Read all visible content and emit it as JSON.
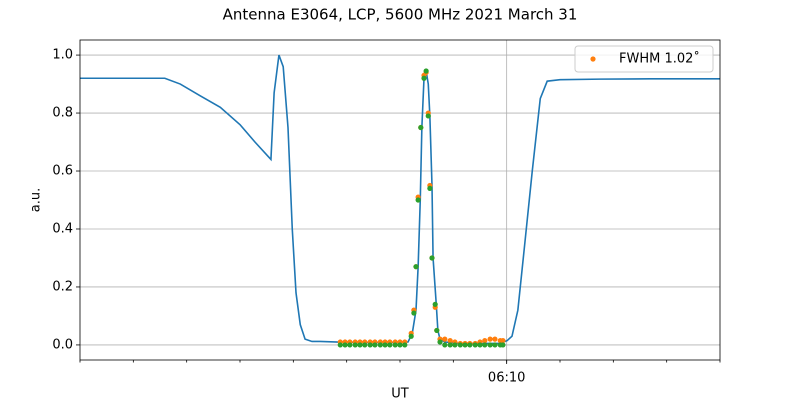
{
  "chart_data": {
    "type": "line",
    "title": "Antenna E3064, LCP, 5600 MHz 2021 March 31",
    "xlabel": "UT",
    "ylabel": "a.u.",
    "xlim": [
      22120,
      22240
    ],
    "ylim": [
      -0.052,
      1.052
    ],
    "xticks": [
      {
        "value": 22200,
        "label": "06:10"
      }
    ],
    "xminorticks": [
      22120,
      22130,
      22140,
      22150,
      22160,
      22170,
      22180,
      22190,
      22200,
      22210,
      22220,
      22230,
      22240
    ],
    "yticks": [
      {
        "value": 0,
        "label": "0.0"
      },
      0.2,
      0.4,
      0.6,
      0.8,
      {
        "value": 1,
        "label": "1.0"
      }
    ],
    "grid": true,
    "legend": "upper right",
    "line": {
      "color": "#1f77b4",
      "x": [
        22120,
        22123.8,
        22129.4,
        22135.9,
        22138.8,
        22142.5,
        22146.3,
        22150,
        22152.8,
        22155.3,
        22155.8,
        22156.4,
        22157.3,
        22158.1,
        22159,
        22159.8,
        22160.5,
        22161.3,
        22162.2,
        22163.5,
        22165,
        22168.4,
        22172.5,
        22176.3,
        22180,
        22181.5,
        22182.3,
        22183,
        22183.4,
        22183.8,
        22184.1,
        22184.5,
        22184.9,
        22185.3,
        22185.6,
        22186,
        22186.2,
        22186.8,
        22187.1,
        22187.5,
        22188.4,
        22191.3,
        22198.8,
        22200.1,
        22201,
        22202.1,
        22203.4,
        22204.8,
        22206.3,
        22207.6,
        22210,
        22217.5,
        22226.9,
        22236.3,
        22240
      ],
      "values": [
        0.92,
        0.92,
        0.92,
        0.92,
        0.9,
        0.86,
        0.82,
        0.76,
        0.7,
        0.65,
        0.64,
        0.87,
        1.0,
        0.96,
        0.75,
        0.4,
        0.18,
        0.07,
        0.02,
        0.012,
        0.012,
        0.01,
        0.008,
        0.008,
        0.008,
        0.01,
        0.04,
        0.12,
        0.27,
        0.5,
        0.75,
        0.92,
        0.945,
        0.9,
        0.79,
        0.55,
        0.3,
        0.14,
        0.05,
        0.02,
        0.01,
        0.005,
        0.005,
        0.015,
        0.03,
        0.12,
        0.35,
        0.6,
        0.85,
        0.91,
        0.915,
        0.917,
        0.918,
        0.918,
        0.918
      ]
    },
    "series": [
      {
        "name": "FWHM 1.02˚",
        "color": "#ff7f0e",
        "x": [
          22168.8,
          22169.7,
          22170.6,
          22171.6,
          22172.5,
          22173.4,
          22174.4,
          22175.3,
          22176.3,
          22177.2,
          22178.1,
          22179.1,
          22180,
          22180.9,
          22182.1,
          22182.6,
          22183,
          22183.4,
          22183.9,
          22184.5,
          22184.9,
          22185.3,
          22185.6,
          22186,
          22186.6,
          22186.9,
          22187.5,
          22188.4,
          22189.4,
          22190.3,
          22191.3,
          22192.2,
          22193.1,
          22194.1,
          22195,
          22195.9,
          22196.9,
          22197.8,
          22198.8,
          22199.3
        ],
        "values": [
          0.01,
          0.01,
          0.01,
          0.01,
          0.01,
          0.01,
          0.01,
          0.01,
          0.01,
          0.01,
          0.01,
          0.01,
          0.01,
          0.01,
          0.04,
          0.12,
          0.27,
          0.51,
          0.75,
          0.93,
          0.94,
          0.8,
          0.55,
          0.3,
          0.13,
          0.05,
          0.02,
          0.02,
          0.015,
          0.01,
          0.005,
          0.005,
          0.005,
          0.005,
          0.01,
          0.015,
          0.02,
          0.02,
          0.015,
          0.015
        ]
      },
      {
        "color": "#2ca02c",
        "x": [
          22168.8,
          22169.7,
          22170.6,
          22171.6,
          22172.5,
          22173.4,
          22174.4,
          22175.3,
          22176.3,
          22177.2,
          22178.1,
          22179.1,
          22180,
          22180.9,
          22182.1,
          22182.6,
          22183,
          22183.4,
          22183.9,
          22184.5,
          22184.9,
          22185.3,
          22185.6,
          22186,
          22186.6,
          22186.9,
          22187.5,
          22188.4,
          22189.4,
          22190.3,
          22191.3,
          22192.2,
          22193.1,
          22194.1,
          22195,
          22195.9,
          22196.9,
          22197.8,
          22198.8,
          22199.3
        ],
        "values": [
          0,
          0,
          0,
          0,
          0,
          0,
          0,
          0,
          0,
          0,
          0,
          0,
          0,
          0,
          0.03,
          0.11,
          0.27,
          0.5,
          0.75,
          0.92,
          0.945,
          0.79,
          0.54,
          0.3,
          0.14,
          0.05,
          0.01,
          0,
          0,
          0,
          0,
          0,
          0,
          0,
          0,
          0,
          0,
          0,
          0,
          0
        ]
      }
    ]
  }
}
